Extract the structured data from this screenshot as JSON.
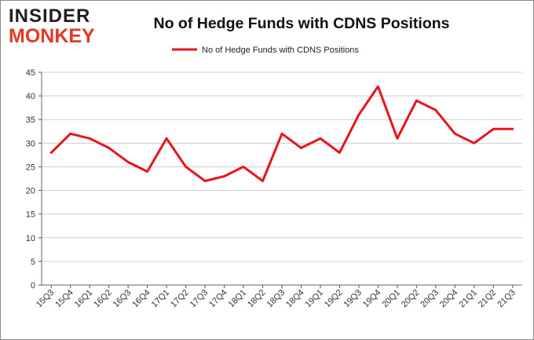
{
  "logo": {
    "line1": "INSIDER",
    "line2": "MONKEY"
  },
  "chart_data": {
    "type": "line",
    "title": "No of Hedge Funds with CDNS Positions",
    "xlabel": "",
    "ylabel": "",
    "categories": [
      "15Q3",
      "15Q4",
      "16Q1",
      "16Q2",
      "16Q3",
      "16Q4",
      "17Q1",
      "17Q2",
      "17Q3",
      "17Q4",
      "18Q1",
      "18Q2",
      "18Q3",
      "18Q4",
      "19Q1",
      "19Q2",
      "19Q3",
      "19Q4",
      "20Q1",
      "20Q2",
      "20Q3",
      "20Q4",
      "21Q1",
      "21Q2",
      "21Q3"
    ],
    "series": [
      {
        "name": "No of Hedge Funds with CDNS Positions",
        "color": "#e8141b",
        "values": [
          28,
          32,
          31,
          29,
          26,
          24,
          31,
          25,
          22,
          23,
          25,
          22,
          32,
          29,
          31,
          28,
          36,
          42,
          31,
          39,
          37,
          32,
          30,
          33,
          33
        ]
      }
    ],
    "ylim": [
      0,
      45
    ],
    "yticks": [
      0,
      5,
      10,
      15,
      20,
      25,
      30,
      35,
      40,
      45
    ],
    "grid": "horizontal",
    "legend_position": "top"
  }
}
